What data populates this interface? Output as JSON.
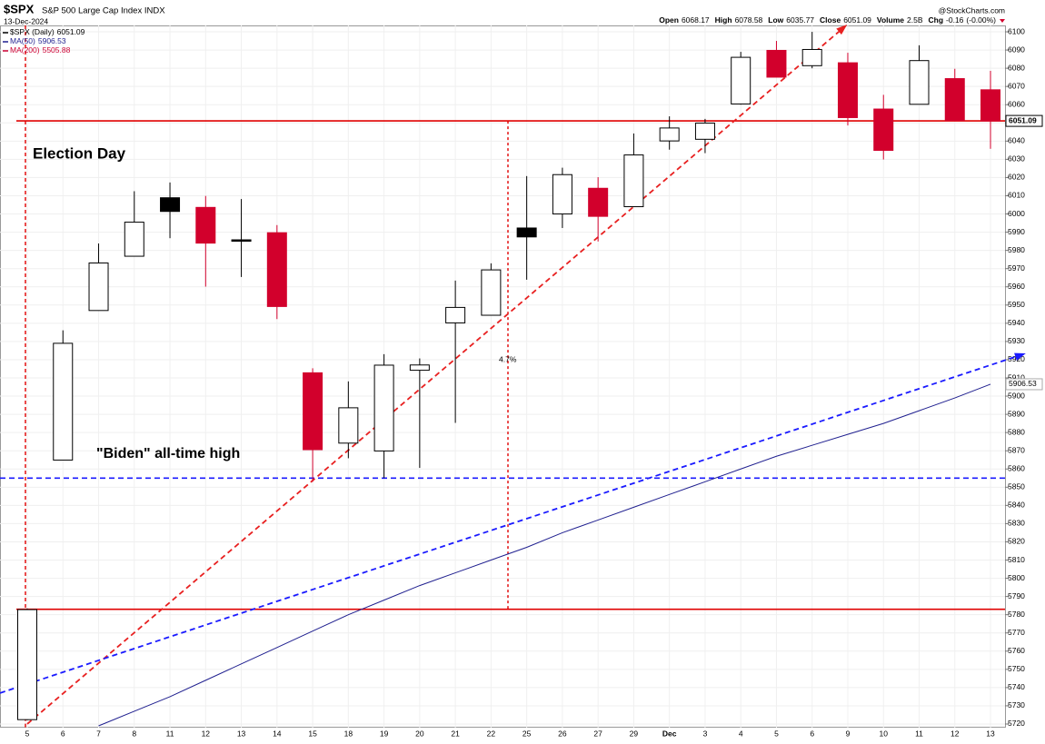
{
  "chart_data": {
    "type": "candlestick",
    "title": "$SPX",
    "subtitle": "S&P 500 Large Cap Index INDX",
    "date": "13-Dec-2024",
    "source": "@StockCharts.com",
    "quote": [
      {
        "label": "Open",
        "value": 6068.17
      },
      {
        "label": "High",
        "value": 6078.58
      },
      {
        "label": "Low",
        "value": 6035.77
      },
      {
        "label": "Close",
        "value": 6051.09
      },
      {
        "label": "Volume",
        "value": "2.5B"
      },
      {
        "label": "Chg",
        "value": -0.16,
        "pct": "(-0.00%)"
      }
    ],
    "series_name": "$SPX (Daily)",
    "categories": [
      "5",
      "6",
      "7",
      "8",
      "11",
      "12",
      "13",
      "14",
      "15",
      "18",
      "19",
      "20",
      "21",
      "22",
      "25",
      "26",
      "27",
      "29",
      "Dec",
      "3",
      "4",
      "5",
      "6",
      "9",
      "10",
      "11",
      "12",
      "13"
    ],
    "open": [
      5722.4,
      5864.9,
      5947.0,
      5976.8,
      6008.9,
      6003.6,
      5985.8,
      5989.7,
      5912.8,
      5874.2,
      5869.9,
      5914.2,
      5940.2,
      5944.4,
      5992.3,
      6000.0,
      6014.1,
      6004.0,
      6040.1,
      6041.0,
      6060.4,
      6089.8,
      6081.4,
      6083.0,
      6057.6,
      6060.2,
      6074.3,
      6068.17
    ],
    "high": [
      5783.4,
      5936.1,
      5983.8,
      6012.5,
      6017.3,
      6009.9,
      6008.2,
      5993.9,
      5915.3,
      5908.1,
      5923.0,
      5920.7,
      5963.4,
      5972.9,
      6020.8,
      6025.4,
      6020.2,
      6044.2,
      6053.6,
      6052.2,
      6089.0,
      6095.0,
      6099.97,
      6088.5,
      6065.4,
      6092.6,
      6079.7,
      6078.58
    ],
    "low": [
      5722.1,
      5864.9,
      5947.0,
      5976.8,
      5986.7,
      5960.1,
      5965.4,
      5942.3,
      5853.0,
      5865.9,
      5855.0,
      5860.6,
      5885.3,
      5944.4,
      5963.9,
      5992.3,
      5984.9,
      6004.0,
      6035.3,
      6033.4,
      6060.0,
      6075.0,
      6079.98,
      6048.6,
      6029.9,
      6060.2,
      6051.3,
      6035.77
    ],
    "close": [
      5782.8,
      5929.0,
      5973.1,
      5995.5,
      6001.4,
      5984.0,
      5985.4,
      5949.2,
      5870.6,
      5893.6,
      5917.0,
      5917.1,
      5948.7,
      5969.3,
      5987.4,
      6021.6,
      5998.7,
      6032.4,
      6047.2,
      6049.9,
      6086.0,
      6075.1,
      6090.3,
      6052.9,
      6034.9,
      6084.2,
      6051.3,
      6051.09
    ],
    "up_color": "#ffffff",
    "down_color": "#d2002c",
    "hollow_down_color": "#000000",
    "moving_averages": [
      {
        "name": "MA(50)",
        "last": 5906.53,
        "color": "#1f1f8f",
        "values": [
          null,
          null,
          5719,
          5727,
          5735,
          5744,
          5753,
          5762,
          5771,
          5780,
          5788,
          5796,
          5803,
          5810,
          5817,
          5825,
          5832,
          5839,
          5846,
          5853,
          5860,
          5867,
          5873,
          5879,
          5885,
          5892,
          5899,
          5906.53
        ]
      },
      {
        "name": "MA(200)",
        "last": 5505.88,
        "color": "#cc0033"
      }
    ],
    "hlines": [
      {
        "value": 6051.09,
        "color": "#e00000",
        "style": "solid"
      },
      {
        "value": 5855,
        "color": "#1a1aff",
        "style": "dashed"
      },
      {
        "value": 5783,
        "color": "#e00000",
        "style": "solid"
      }
    ],
    "trendlines": [
      {
        "color": "#e82020",
        "start": 5720,
        "end": 6103
      },
      {
        "color": "#1a1aff",
        "start": 5737,
        "end": 5923
      }
    ],
    "annotations": [
      {
        "text": "Election Day",
        "color": "#e00000"
      },
      {
        "text": "\"Biden\" all-time high",
        "color": "#1a1acc"
      },
      {
        "text": "4.7%",
        "color": "#000000"
      }
    ],
    "ylim": [
      5718,
      6103.5
    ],
    "yticks": [
      5720,
      5730,
      5740,
      5750,
      5760,
      5770,
      5780,
      5790,
      5800,
      5810,
      5820,
      5830,
      5840,
      5850,
      5860,
      5870,
      5880,
      5890,
      5900,
      5910,
      5920,
      5930,
      5940,
      5950,
      5960,
      5970,
      5980,
      5990,
      6000,
      6010,
      6020,
      6030,
      6040,
      6050,
      6060,
      6070,
      6080,
      6090,
      6100
    ],
    "grid": true
  }
}
